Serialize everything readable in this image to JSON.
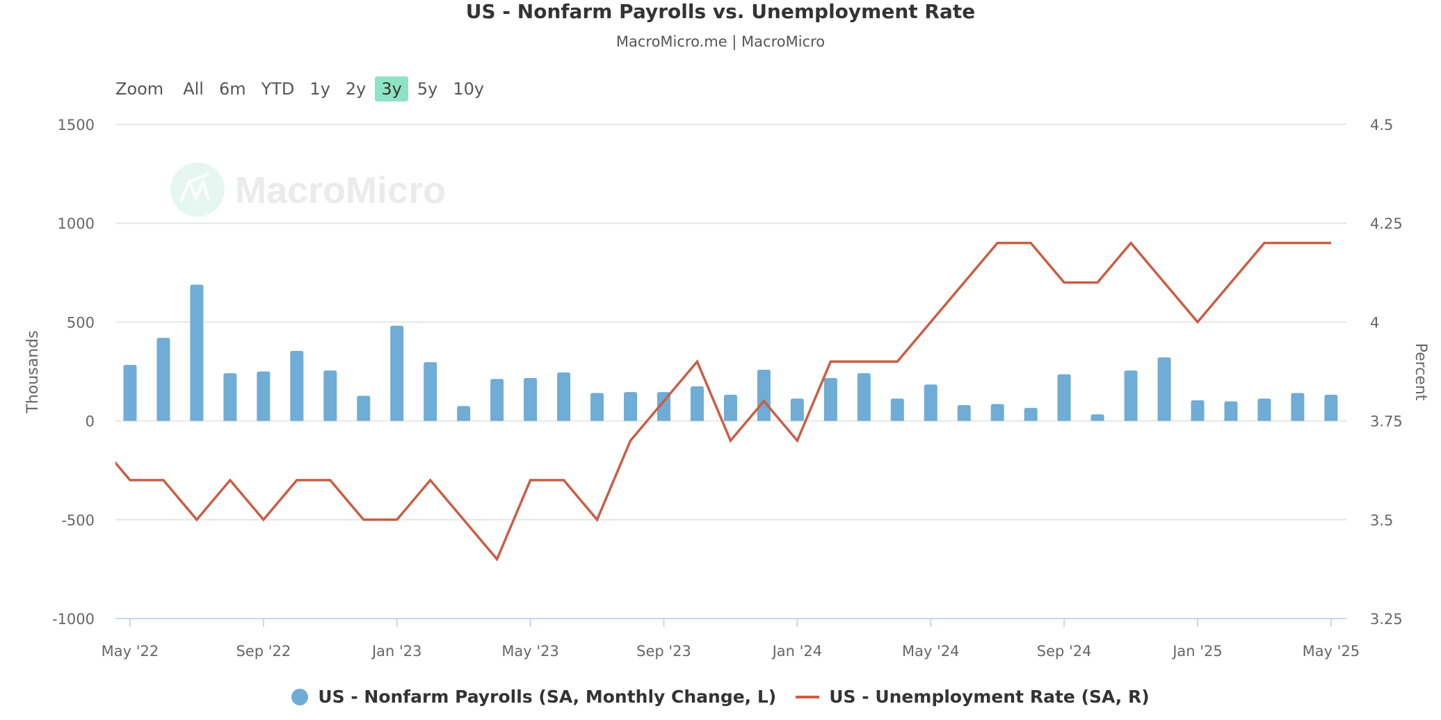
{
  "chart_data": {
    "type": "bar+line",
    "title": "US - Nonfarm Payrolls vs. Unemployment Rate",
    "subtitle": "MacroMicro.me | MacroMicro",
    "watermark": "MacroMicro",
    "x": [
      "Apr '22",
      "May '22",
      "Jun '22",
      "Jul '22",
      "Aug '22",
      "Sep '22",
      "Oct '22",
      "Nov '22",
      "Dec '22",
      "Jan '23",
      "Feb '23",
      "Mar '23",
      "Apr '23",
      "May '23",
      "Jun '23",
      "Jul '23",
      "Aug '23",
      "Sep '23",
      "Oct '23",
      "Nov '23",
      "Dec '23",
      "Jan '24",
      "Feb '24",
      "Mar '24",
      "Apr '24",
      "May '24",
      "Jun '24",
      "Jul '24",
      "Aug '24",
      "Sep '24",
      "Oct '24",
      "Nov '24",
      "Dec '24",
      "Jan '25",
      "Feb '25",
      "Mar '25",
      "Apr '25",
      "May '25"
    ],
    "x_tick_labels": [
      "May '22",
      "Sep '22",
      "Jan '23",
      "May '23",
      "Sep '23",
      "Jan '24",
      "May '24",
      "Sep '24",
      "Jan '25",
      "May '25"
    ],
    "y_left": {
      "label": "Thousands",
      "range": [
        -1000,
        1500
      ],
      "ticks": [
        "1500",
        "1000",
        "500",
        "0",
        "-500",
        "-1000"
      ]
    },
    "y_right": {
      "label": "Percent",
      "range": [
        3.25,
        4.5
      ],
      "ticks": [
        "4.5",
        "4.25",
        "4",
        "3.75",
        "3.5",
        "3.25"
      ]
    },
    "grid": true,
    "legend_position": "bottom",
    "series": [
      {
        "name": "US - Nonfarm Payrolls (SA, Monthly Change, L)",
        "type": "bar",
        "axis": "left",
        "color": "#6facd6",
        "values": [
          null,
          283,
          420,
          689,
          241,
          250,
          354,
          255,
          127,
          481,
          297,
          75,
          212,
          217,
          245,
          141,
          146,
          146,
          175,
          132,
          259,
          113,
          217,
          241,
          113,
          184,
          80,
          85,
          66,
          236,
          33,
          255,
          321,
          104,
          99,
          113,
          141,
          132
        ]
      },
      {
        "name": "US - Unemployment Rate (SA, R)",
        "type": "line",
        "axis": "right",
        "color": "#cb5d44",
        "values": [
          3.7,
          3.6,
          3.6,
          3.5,
          3.6,
          3.5,
          3.6,
          3.6,
          3.5,
          3.5,
          3.6,
          3.5,
          3.4,
          3.6,
          3.6,
          3.5,
          3.7,
          3.8,
          3.9,
          3.7,
          3.8,
          3.7,
          3.9,
          3.9,
          3.9,
          4.0,
          4.1,
          4.2,
          4.2,
          4.1,
          4.1,
          4.2,
          4.1,
          4.0,
          4.1,
          4.2,
          4.2,
          4.2
        ]
      }
    ]
  },
  "zoom": {
    "label": "Zoom",
    "options": [
      "All",
      "6m",
      "YTD",
      "1y",
      "2y",
      "3y",
      "5y",
      "10y"
    ],
    "selected": "3y"
  }
}
